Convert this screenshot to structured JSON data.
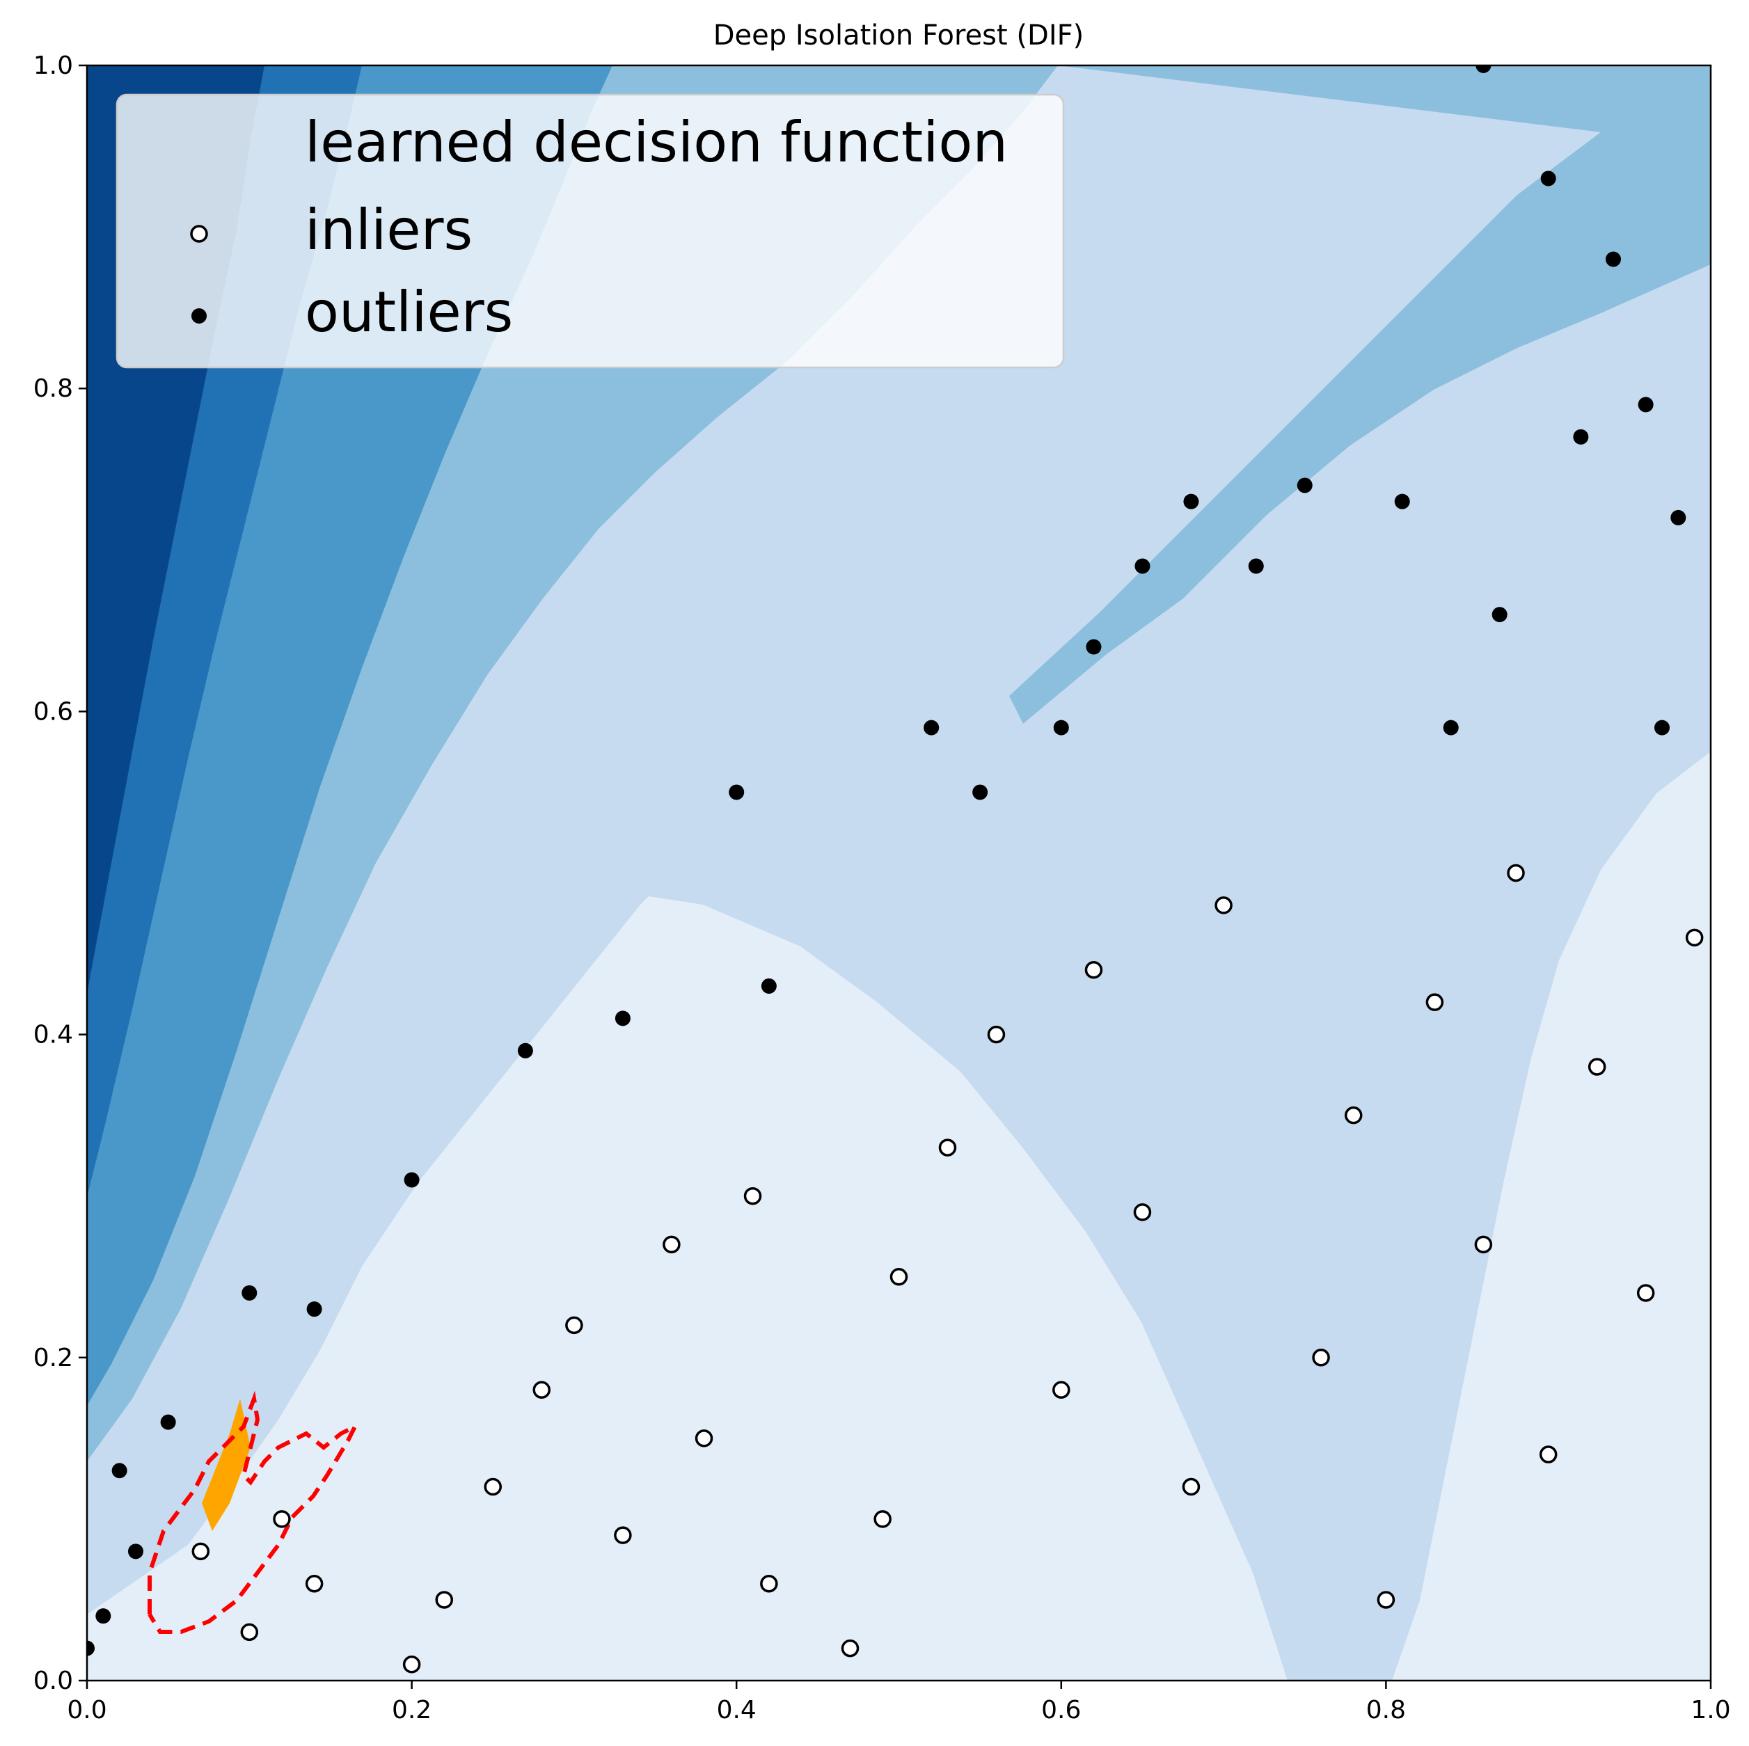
{
  "chart_data": {
    "type": "scatter",
    "title": "Deep Isolation Forest (DIF)",
    "xlabel": "",
    "ylabel": "",
    "xlim": [
      0.0,
      1.0
    ],
    "ylim": [
      0.0,
      1.0
    ],
    "x_ticks": [
      "0.0",
      "0.2",
      "0.4",
      "0.6",
      "0.8",
      "1.0"
    ],
    "y_ticks": [
      "0.0",
      "0.2",
      "0.4",
      "0.6",
      "0.8",
      "1.0"
    ],
    "grid": false,
    "legend": {
      "placement": "top-left",
      "entries": [
        "learned decision function",
        "inliers",
        "outliers"
      ]
    },
    "background": {
      "type": "filled-contour",
      "colormap": "Blues",
      "levels_colors": [
        "#08468b",
        "#2171b5",
        "#4a98c9",
        "#8cbfdd",
        "#c6dbef",
        "#e4eef9"
      ],
      "threshold_contour_color": "#ff0000",
      "threshold_fill_color": "#ffa500"
    },
    "series": [
      {
        "name": "inliers",
        "marker": "open-circle",
        "color": "#ffffff",
        "edge": "#000000",
        "points": [
          [
            0.2,
            0.01
          ],
          [
            0.22,
            0.05
          ],
          [
            0.25,
            0.12
          ],
          [
            0.28,
            0.18
          ],
          [
            0.3,
            0.22
          ],
          [
            0.33,
            0.09
          ],
          [
            0.36,
            0.27
          ],
          [
            0.38,
            0.15
          ],
          [
            0.41,
            0.3
          ],
          [
            0.42,
            0.06
          ],
          [
            0.47,
            0.02
          ],
          [
            0.49,
            0.1
          ],
          [
            0.5,
            0.25
          ],
          [
            0.53,
            0.33
          ],
          [
            0.56,
            0.4
          ],
          [
            0.6,
            0.18
          ],
          [
            0.62,
            0.44
          ],
          [
            0.65,
            0.29
          ],
          [
            0.68,
            0.12
          ],
          [
            0.7,
            0.48
          ],
          [
            0.76,
            0.2
          ],
          [
            0.78,
            0.35
          ],
          [
            0.8,
            0.05
          ],
          [
            0.83,
            0.42
          ],
          [
            0.86,
            0.27
          ],
          [
            0.88,
            0.5
          ],
          [
            0.9,
            0.14
          ],
          [
            0.93,
            0.38
          ],
          [
            0.96,
            0.24
          ],
          [
            0.99,
            0.46
          ],
          [
            0.07,
            0.08
          ],
          [
            0.1,
            0.03
          ],
          [
            0.12,
            0.1
          ],
          [
            0.14,
            0.06
          ]
        ]
      },
      {
        "name": "outliers",
        "marker": "filled-circle",
        "color": "#000000",
        "points": [
          [
            0.02,
            0.13
          ],
          [
            0.05,
            0.16
          ],
          [
            0.1,
            0.24
          ],
          [
            0.14,
            0.23
          ],
          [
            0.2,
            0.31
          ],
          [
            0.27,
            0.39
          ],
          [
            0.33,
            0.41
          ],
          [
            0.4,
            0.55
          ],
          [
            0.42,
            0.43
          ],
          [
            0.52,
            0.59
          ],
          [
            0.55,
            0.55
          ],
          [
            0.6,
            0.59
          ],
          [
            0.62,
            0.64
          ],
          [
            0.65,
            0.69
          ],
          [
            0.68,
            0.73
          ],
          [
            0.72,
            0.69
          ],
          [
            0.75,
            0.74
          ],
          [
            0.81,
            0.73
          ],
          [
            0.86,
            1.0
          ],
          [
            0.9,
            0.93
          ],
          [
            0.94,
            0.88
          ],
          [
            0.96,
            0.79
          ],
          [
            0.98,
            0.72
          ],
          [
            0.87,
            0.66
          ],
          [
            0.84,
            0.59
          ],
          [
            0.92,
            0.77
          ],
          [
            0.97,
            0.59
          ],
          [
            0.01,
            0.04
          ],
          [
            0.03,
            0.08
          ],
          [
            0.0,
            0.02
          ]
        ]
      }
    ]
  }
}
